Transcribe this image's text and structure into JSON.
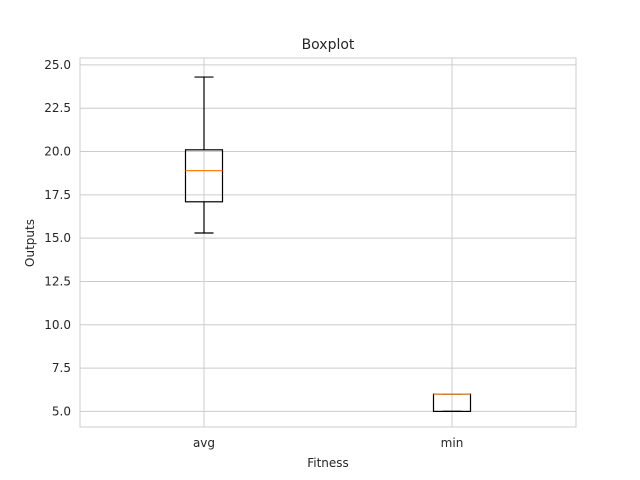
{
  "chart_data": {
    "type": "box",
    "title": "Boxplot",
    "xlabel": "Fitness",
    "ylabel": "Outputs",
    "ylim": [
      4.1,
      25.4
    ],
    "yticks": [
      5.0,
      7.5,
      10.0,
      12.5,
      15.0,
      17.5,
      20.0,
      22.5,
      25.0
    ],
    "ytick_labels": [
      "5.0",
      "7.5",
      "10.0",
      "12.5",
      "15.0",
      "17.5",
      "20.0",
      "22.5",
      "25.0"
    ],
    "categories": [
      "avg",
      "min"
    ],
    "boxes": [
      {
        "category": "avg",
        "whisker_low": 15.3,
        "q1": 17.1,
        "median": 18.9,
        "q3": 20.1,
        "whisker_high": 24.3
      },
      {
        "category": "min",
        "whisker_low": 5.0,
        "q1": 5.0,
        "median": 6.0,
        "q3": 6.0,
        "whisker_high": 6.0
      }
    ],
    "grid": true,
    "colors": {
      "box": "#000000",
      "median": "#ff7f0e",
      "grid": "#cccccc",
      "frame": "#cccccc"
    }
  }
}
